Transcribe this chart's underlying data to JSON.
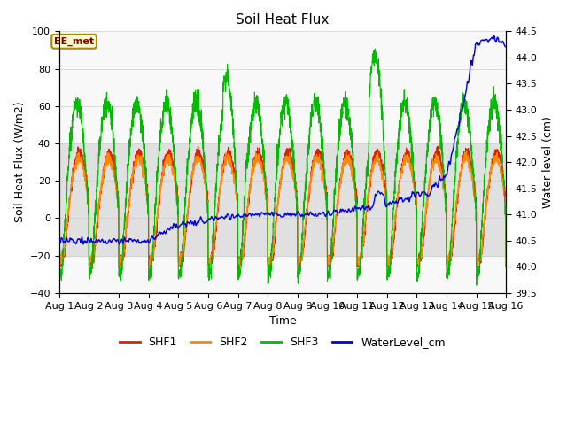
{
  "title": "Soil Heat Flux",
  "xlabel": "Time",
  "ylabel_left": "Soil Heat Flux (W/m2)",
  "ylabel_right": "Water level (cm)",
  "xlim": [
    0,
    15
  ],
  "ylim_left": [
    -40,
    100
  ],
  "ylim_right": [
    39.5,
    44.5
  ],
  "xtick_labels": [
    "Aug 1",
    "Aug 2",
    "Aug 3",
    "Aug 4",
    "Aug 5",
    "Aug 6",
    "Aug 7",
    "Aug 8",
    "Aug 9",
    "Aug 10",
    "Aug 11",
    "Aug 12",
    "Aug 13",
    "Aug 14",
    "Aug 15",
    "Aug 16"
  ],
  "ytick_left": [
    -40,
    -20,
    0,
    20,
    40,
    60,
    80,
    100
  ],
  "ytick_right": [
    39.5,
    40.0,
    40.5,
    41.0,
    41.5,
    42.0,
    42.5,
    43.0,
    43.5,
    44.0,
    44.5
  ],
  "band_color": "#e0e0e0",
  "band_ymin": -20,
  "band_ymax": 40,
  "legend_items": [
    "SHF1",
    "SHF2",
    "SHF3",
    "WaterLevel_cm"
  ],
  "legend_colors": [
    "#dd2200",
    "#ff8800",
    "#00bb00",
    "#0000dd"
  ],
  "annotation_text": "EE_met",
  "shf_color1": "#dd2200",
  "shf_color2": "#ff8800",
  "shf_color3": "#00bb00",
  "wl_color": "#0000dd",
  "bg_color": "#f8f8f8"
}
